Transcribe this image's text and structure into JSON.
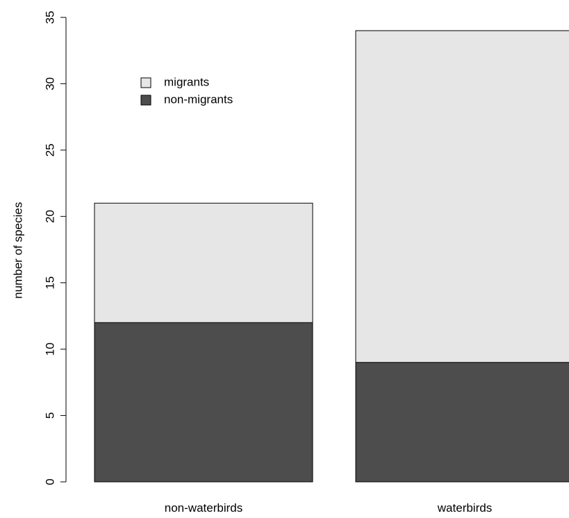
{
  "chart_data": {
    "type": "bar",
    "stacked": true,
    "categories": [
      "non-waterbirds",
      "waterbirds"
    ],
    "series": [
      {
        "name": "non-migrants",
        "values": [
          12,
          9
        ],
        "color": "#4d4d4d"
      },
      {
        "name": "migrants",
        "values": [
          9,
          25
        ],
        "color": "#e6e6e6"
      }
    ],
    "legend": {
      "position": "top-left",
      "entries": [
        "migrants",
        "non-migrants"
      ]
    },
    "title": "",
    "xlabel": "",
    "ylabel": "number of species",
    "ylim": [
      0,
      35
    ],
    "yticks": [
      "0",
      "5",
      "10",
      "15",
      "20",
      "25",
      "30",
      "35"
    ],
    "grid": false
  }
}
